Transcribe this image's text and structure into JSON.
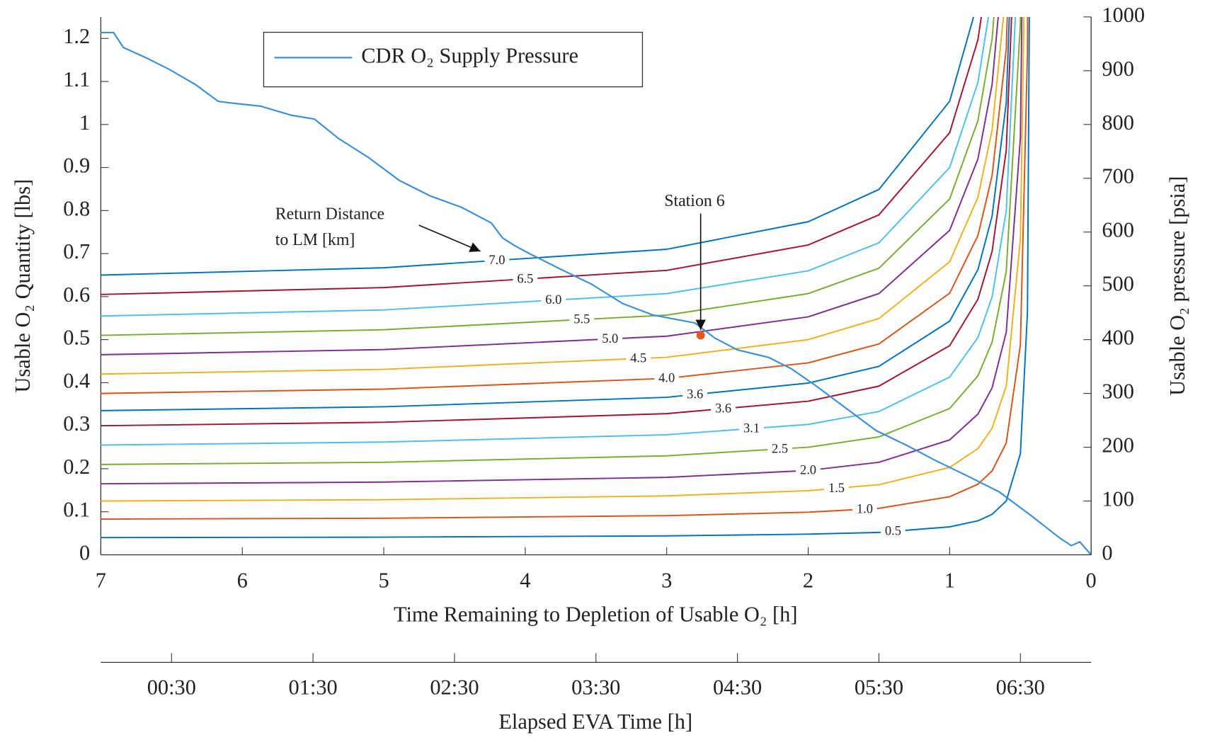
{
  "chart_data": {
    "type": "line",
    "xlabel": "Time Remaining to Depletion of Usable O₂ [h]",
    "ylabel": "Usable O₂ Quantity [lbs]",
    "y2label": "Usable O₂ pressure [psia]",
    "xlim": [
      7,
      0
    ],
    "xticks": [
      7,
      6,
      5,
      4,
      3,
      2,
      1,
      0
    ],
    "ylim": [
      0,
      1.25
    ],
    "yticks": [
      0,
      0.1,
      0.2,
      0.3,
      0.4,
      0.5,
      0.6,
      0.7,
      0.8,
      0.9,
      1,
      1.1,
      1.2
    ],
    "y2lim": [
      0,
      1000
    ],
    "y2ticks": [
      0,
      100,
      200,
      300,
      400,
      500,
      600,
      700,
      800,
      900,
      1000
    ],
    "legend": "upper left",
    "series": [
      {
        "name": "CDR O₂ Supply Pressure",
        "color": "#3d8fd4",
        "axis": "y2",
        "x": [
          7.0,
          6.91,
          6.84,
          6.68,
          6.52,
          6.33,
          6.17,
          6.08,
          5.87,
          5.65,
          5.49,
          5.32,
          5.11,
          4.89,
          4.67,
          4.45,
          4.24,
          4.16,
          4.07,
          3.97,
          3.75,
          3.53,
          3.31,
          3.1,
          2.96,
          2.8,
          2.66,
          2.5,
          2.28,
          2.12,
          1.96,
          1.74,
          1.52,
          1.3,
          1.09,
          0.87,
          0.65,
          0.43,
          0.22,
          0.14,
          0.08,
          0
        ],
        "values": [
          971,
          971,
          943,
          924,
          903,
          874,
          843,
          840,
          834,
          817,
          810,
          774,
          739,
          696,
          667,
          646,
          617,
          589,
          574,
          560,
          531,
          503,
          467,
          446,
          439,
          431,
          403,
          381,
          367,
          346,
          317,
          274,
          231,
          203,
          174,
          146,
          117,
          74,
          31,
          17,
          24,
          0
        ]
      }
    ],
    "contours": [
      {
        "name": "0.5",
        "color": "#0072bd",
        "x": [
          7,
          5,
          3,
          2,
          1.5,
          1,
          0.8,
          0.7,
          0.6,
          0.5,
          0.45,
          0.43
        ],
        "values": [
          0.04,
          0.041,
          0.044,
          0.048,
          0.052,
          0.065,
          0.079,
          0.094,
          0.125,
          0.235,
          0.564,
          1.616
        ]
      },
      {
        "name": "1.0",
        "color": "#d95319",
        "x": [
          7,
          5,
          3,
          2,
          1.5,
          1,
          0.8,
          0.7,
          0.6,
          0.5,
          0.45,
          0.43
        ],
        "values": [
          0.083,
          0.085,
          0.091,
          0.099,
          0.108,
          0.135,
          0.164,
          0.195,
          0.26,
          0.488,
          1.17,
          3.353
        ]
      },
      {
        "name": "1.5",
        "color": "#edb120",
        "x": [
          7,
          5,
          3,
          2,
          1.5,
          1,
          0.8,
          0.7,
          0.6,
          0.5,
          0.45
        ],
        "values": [
          0.125,
          0.128,
          0.137,
          0.149,
          0.163,
          0.203,
          0.247,
          0.294,
          0.392,
          0.734,
          1.763
        ]
      },
      {
        "name": "2.0",
        "color": "#7e2f8e",
        "x": [
          7,
          5,
          3,
          2,
          1.5,
          1,
          0.8,
          0.7,
          0.6,
          0.5,
          0.45
        ],
        "values": [
          0.165,
          0.169,
          0.18,
          0.196,
          0.215,
          0.267,
          0.327,
          0.388,
          0.517,
          0.969,
          2.327
        ]
      },
      {
        "name": "2.5",
        "color": "#77ac30",
        "x": [
          7,
          5,
          3,
          2,
          1.5,
          1,
          0.8,
          0.7,
          0.6,
          0.5,
          0.45
        ],
        "values": [
          0.21,
          0.215,
          0.23,
          0.25,
          0.274,
          0.34,
          0.416,
          0.494,
          0.658,
          1.234,
          2.961
        ]
      },
      {
        "name": "3.1",
        "color": "#4dbeee",
        "x": [
          7,
          5,
          3,
          2,
          1.5,
          1,
          0.8,
          0.7,
          0.6,
          0.5
        ],
        "values": [
          0.255,
          0.262,
          0.279,
          0.303,
          0.333,
          0.413,
          0.505,
          0.599,
          0.799,
          1.498
        ]
      },
      {
        "name": "3.6",
        "color": "#a2142f",
        "x": [
          7,
          5,
          3,
          2,
          1.5,
          1,
          0.8,
          0.7,
          0.6,
          0.5
        ],
        "values": [
          0.3,
          0.308,
          0.328,
          0.357,
          0.392,
          0.486,
          0.594,
          0.705,
          0.94,
          1.763
        ]
      },
      {
        "name": "3.6",
        "color": "#0072bd",
        "x": [
          7,
          5,
          3,
          2,
          1.5,
          1,
          0.8,
          0.7,
          0.6,
          0.5
        ],
        "values": [
          0.335,
          0.344,
          0.366,
          0.399,
          0.438,
          0.543,
          0.663,
          0.787,
          1.05,
          1.968
        ]
      },
      {
        "name": "4.0",
        "color": "#d95319",
        "x": [
          7,
          5,
          3,
          2,
          1.5,
          1,
          0.8,
          0.7,
          0.6,
          0.5
        ],
        "values": [
          0.375,
          0.385,
          0.41,
          0.446,
          0.49,
          0.608,
          0.742,
          0.881,
          1.175,
          2.203
        ]
      },
      {
        "name": "4.5",
        "color": "#edb120",
        "x": [
          7,
          5,
          3,
          2,
          1.5,
          1,
          0.8,
          0.7,
          0.6
        ],
        "values": [
          0.42,
          0.431,
          0.459,
          0.5,
          0.549,
          0.681,
          0.831,
          0.987,
          1.316
        ]
      },
      {
        "name": "5.0",
        "color": "#7e2f8e",
        "x": [
          7,
          5,
          3,
          2,
          1.5,
          1,
          0.8,
          0.7,
          0.6
        ],
        "values": [
          0.465,
          0.477,
          0.508,
          0.553,
          0.607,
          0.754,
          0.92,
          1.093,
          1.457
        ]
      },
      {
        "name": "5.5",
        "color": "#77ac30",
        "x": [
          7,
          5,
          3,
          2,
          1.5,
          1,
          0.8,
          0.7,
          0.6
        ],
        "values": [
          0.51,
          0.523,
          0.557,
          0.607,
          0.666,
          0.827,
          1.009,
          1.199,
          1.598
        ]
      },
      {
        "name": "6.0",
        "color": "#4dbeee",
        "x": [
          7,
          5,
          3,
          2,
          1.5,
          1,
          0.8,
          0.7
        ],
        "values": [
          0.555,
          0.569,
          0.607,
          0.66,
          0.725,
          0.9,
          1.098,
          1.304
        ]
      },
      {
        "name": "6.5",
        "color": "#a2142f",
        "x": [
          7,
          5,
          3,
          2,
          1.5,
          1,
          0.8,
          0.7
        ],
        "values": [
          0.605,
          0.621,
          0.661,
          0.72,
          0.79,
          0.981,
          1.197,
          1.422
        ]
      },
      {
        "name": "7.0",
        "color": "#0072bd",
        "x": [
          7,
          5,
          3,
          2,
          1.5,
          1,
          0.8
        ],
        "values": [
          0.65,
          0.667,
          0.71,
          0.774,
          0.849,
          1.054,
          1.286
        ]
      }
    ],
    "markers": [
      {
        "label": "Station 6",
        "x": 2.76,
        "y": 0.51,
        "color": "#e8541c"
      }
    ],
    "annotations": [
      {
        "text": [
          "Return Distance",
          "to LM [km]"
        ]
      }
    ],
    "secondary_x": {
      "label": "Elapsed EVA Time [h]",
      "xlim": [
        0,
        7
      ],
      "xticks": [
        {
          "value": 0.5,
          "label": "00:30"
        },
        {
          "value": 1.5,
          "label": "01:30"
        },
        {
          "value": 2.5,
          "label": "02:30"
        },
        {
          "value": 3.5,
          "label": "03:30"
        },
        {
          "value": 4.5,
          "label": "04:30"
        },
        {
          "value": 5.5,
          "label": "05:30"
        },
        {
          "value": 6.5,
          "label": "06:30"
        }
      ]
    }
  }
}
